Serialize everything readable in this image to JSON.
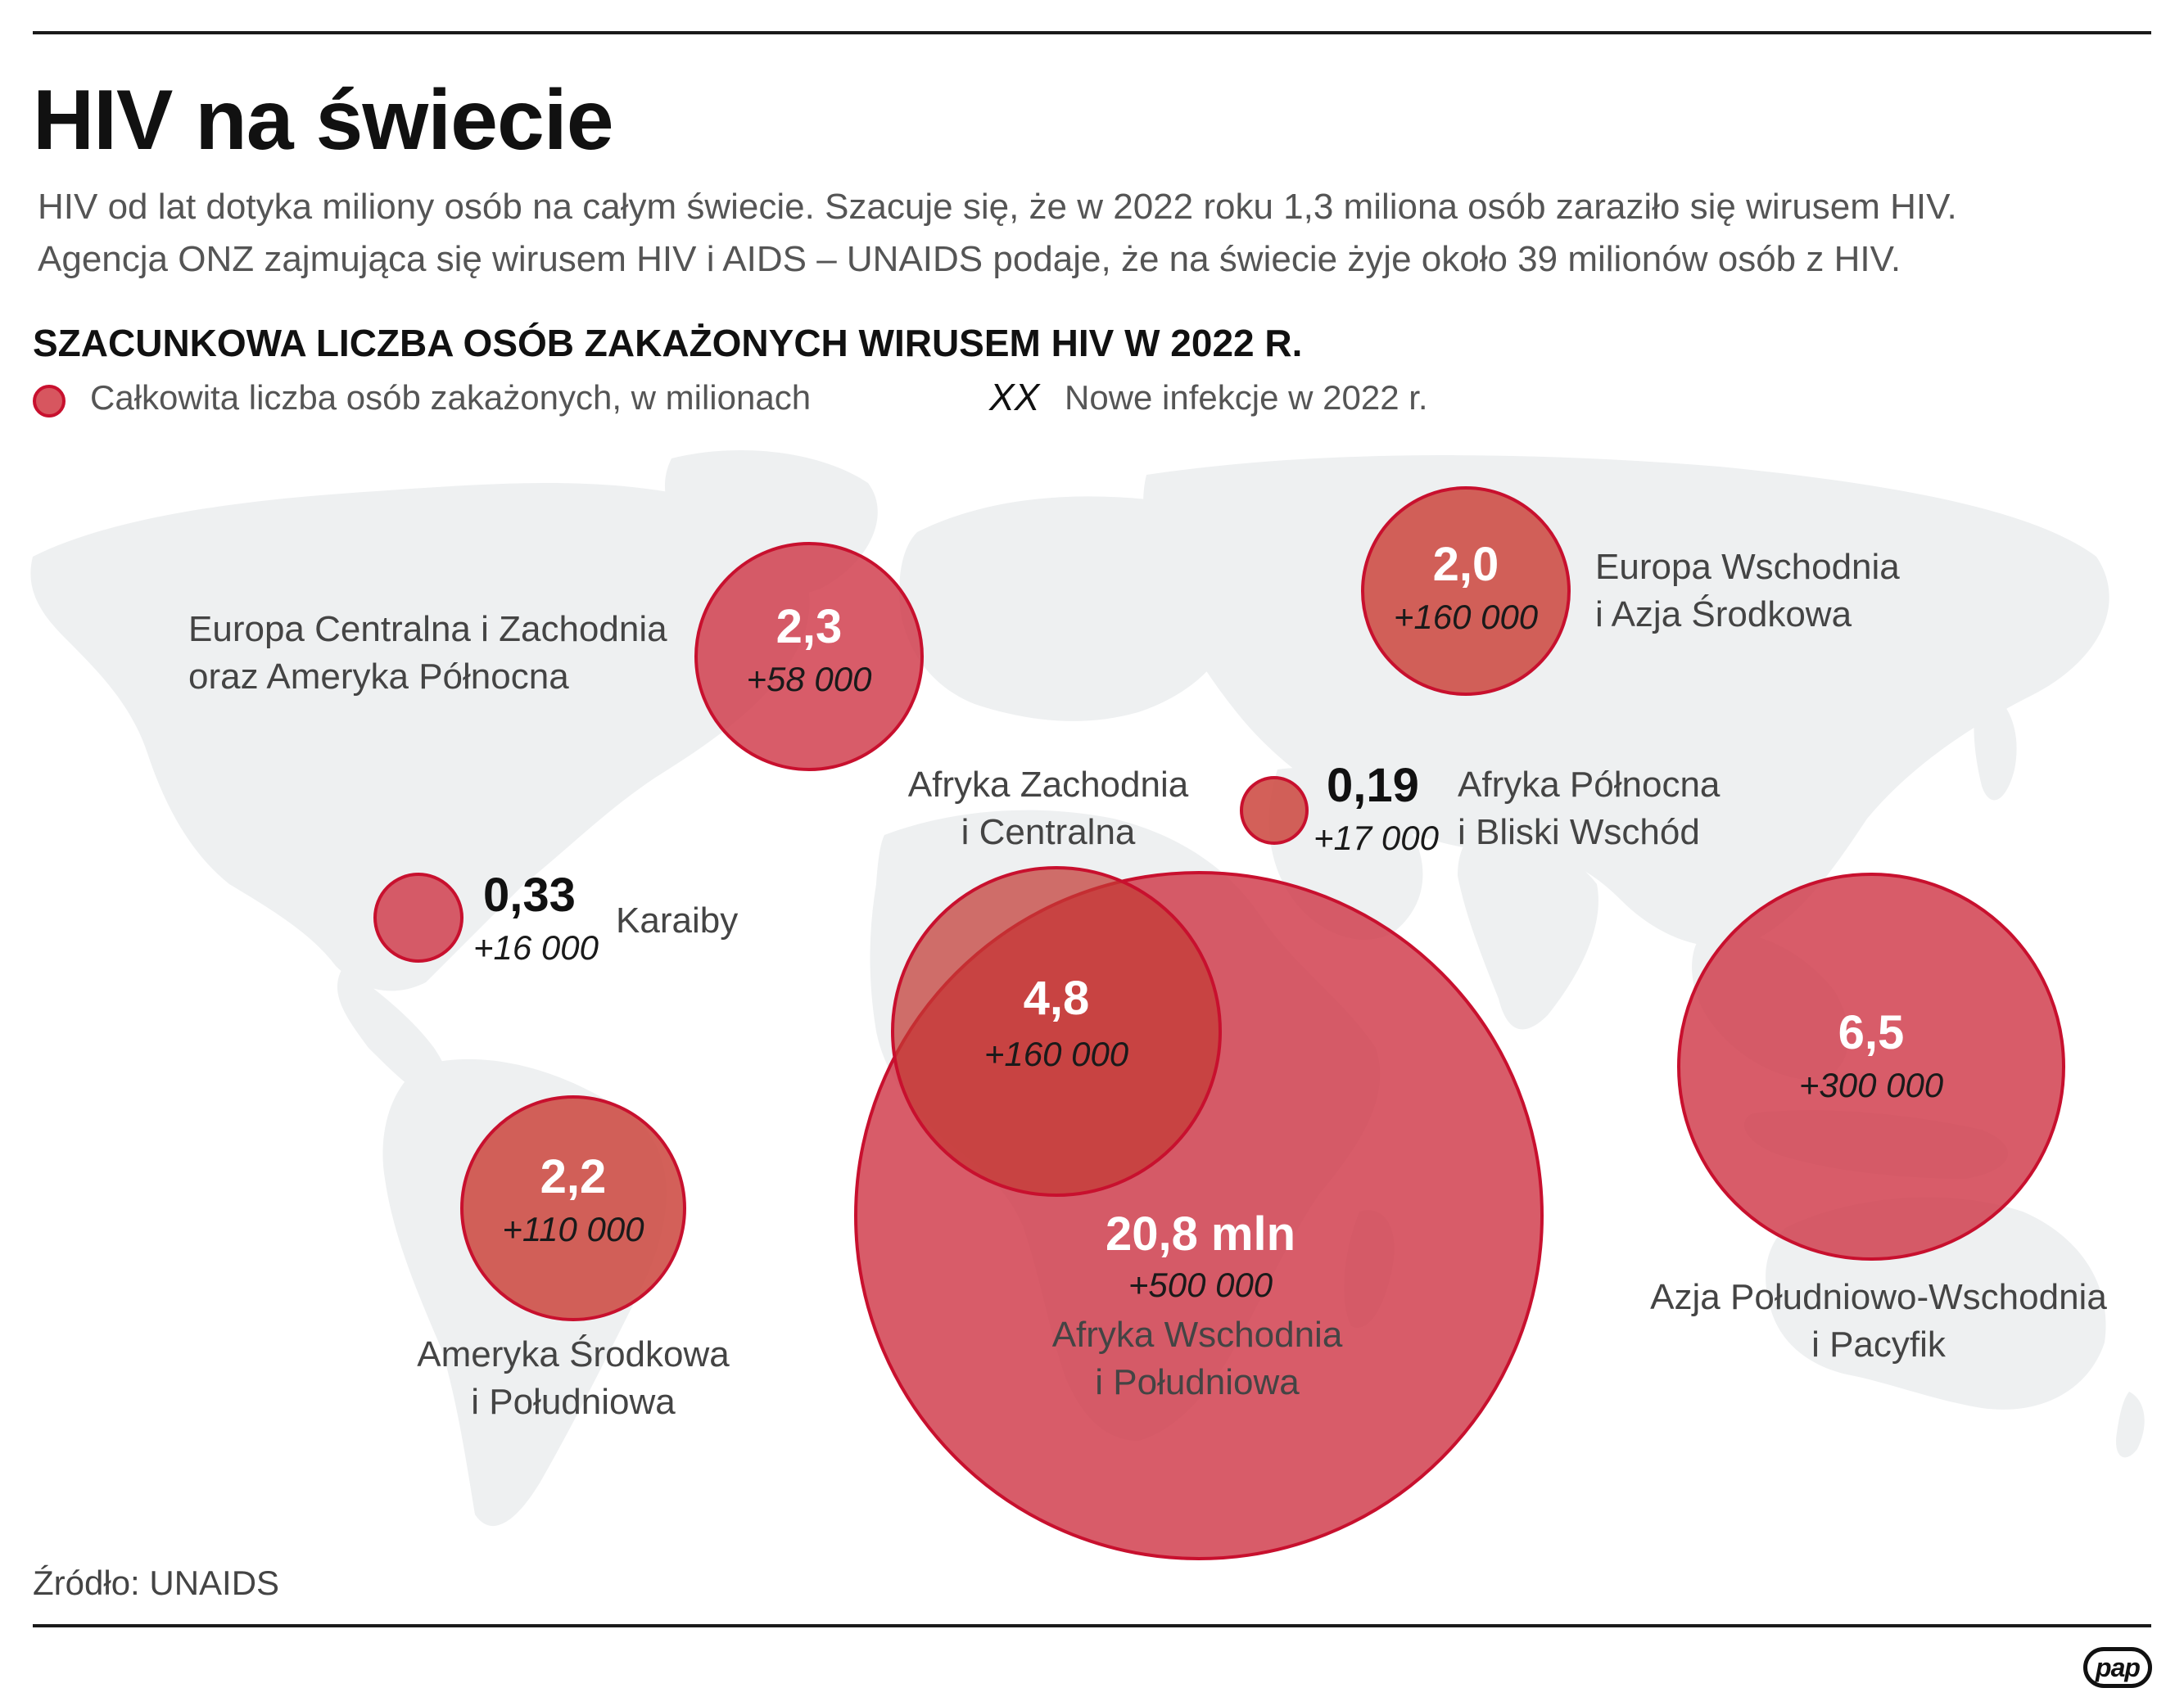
{
  "title": "HIV na świecie",
  "intro": [
    "HIV od lat dotyka miliony osób na całym świecie. Szacuje się, że w 2022 roku 1,3 miliona osób zaraziło się wirusem HIV.",
    "Agencja ONZ zajmująca się wirusem HIV i AIDS – UNAIDS podaje, że na świecie żyje około 39 milionów osób z HIV."
  ],
  "subtitle": "SZACUNKOWA LICZBA OSÓB ZAKAŻONYCH WIRUSEM HIV W 2022 R.",
  "legend": {
    "circle_label": "Całkowita liczba osób zakażonych, w milionach",
    "new_symbol": "XX",
    "new_label": "Nowe infekcje w 2022 r."
  },
  "colors": {
    "bubble_fill": "#d7565f",
    "bubble_border": "#c8102e",
    "map_land": "#eef0f1"
  },
  "regions": [
    {
      "key": "europa-zach",
      "value": "2,3",
      "new": "+58 000",
      "name": [
        "Europa Centralna i Zachodnia",
        "oraz Ameryka Północna"
      ]
    },
    {
      "key": "europa-wsch",
      "value": "2,0",
      "new": "+160 000",
      "name": [
        "Europa Wschodnia",
        "i Azja Środkowa"
      ]
    },
    {
      "key": "afryka-pn",
      "value": "0,19",
      "new": "+17 000",
      "name": [
        "Afryka Północna",
        "i Bliski Wschód"
      ]
    },
    {
      "key": "karaiby",
      "value": "0,33",
      "new": "+16 000",
      "name": [
        "Karaiby"
      ]
    },
    {
      "key": "afryka-zach",
      "value": "4,8",
      "new": "+160 000",
      "name": [
        "Afryka Zachodnia",
        "i Centralna"
      ]
    },
    {
      "key": "afryka-wsch",
      "value": "20,8 mln",
      "new": "+500 000",
      "name": [
        "Afryka Wschodnia",
        "i Południowa"
      ]
    },
    {
      "key": "ameryka-pd",
      "value": "2,2",
      "new": "+110 000",
      "name": [
        "Ameryka Środkowa",
        "i Południowa"
      ]
    },
    {
      "key": "azja-pd",
      "value": "6,5",
      "new": "+300 000",
      "name": [
        "Azja Południowo-Wschodnia",
        "i Pacyfik"
      ]
    }
  ],
  "source": "Źródło: UNAIDS",
  "logo": "pap"
}
